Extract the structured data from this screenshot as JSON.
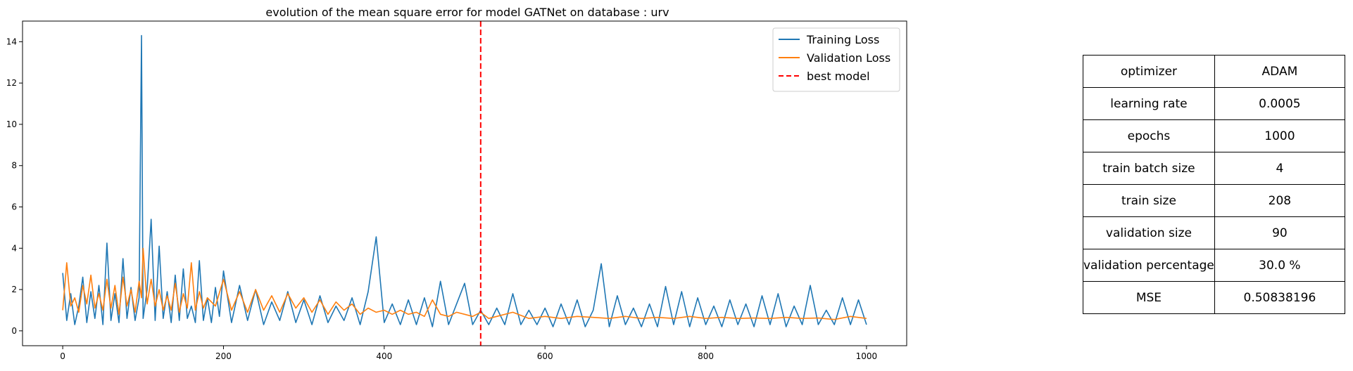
{
  "chart_data": {
    "type": "line",
    "title": "evolution of the mean square error for model GATNet on database : urv",
    "xlabel": "",
    "ylabel": "",
    "xlim": [
      -50,
      1050
    ],
    "ylim": [
      -0.72,
      15.0
    ],
    "xticks": [
      0,
      200,
      400,
      600,
      800,
      1000
    ],
    "yticks": [
      0,
      2,
      4,
      6,
      8,
      10,
      12,
      14
    ],
    "grid": false,
    "legend_position": "top-right",
    "best_model_epoch": 520,
    "series": [
      {
        "name": "Training Loss",
        "color": "#1f77b4",
        "x": [
          0,
          5,
          10,
          15,
          20,
          25,
          30,
          35,
          40,
          45,
          50,
          55,
          60,
          65,
          70,
          75,
          80,
          85,
          90,
          95,
          98,
          100,
          105,
          110,
          115,
          120,
          125,
          130,
          135,
          140,
          145,
          150,
          155,
          160,
          165,
          170,
          175,
          180,
          185,
          190,
          195,
          200,
          210,
          220,
          230,
          240,
          250,
          260,
          270,
          280,
          290,
          300,
          310,
          320,
          330,
          340,
          350,
          360,
          370,
          380,
          390,
          400,
          410,
          420,
          430,
          440,
          450,
          460,
          470,
          480,
          490,
          500,
          510,
          520,
          530,
          540,
          550,
          560,
          570,
          580,
          590,
          600,
          610,
          620,
          630,
          640,
          650,
          660,
          670,
          680,
          690,
          700,
          710,
          720,
          730,
          740,
          750,
          760,
          770,
          780,
          790,
          800,
          810,
          820,
          830,
          840,
          850,
          860,
          870,
          880,
          890,
          900,
          910,
          920,
          930,
          940,
          950,
          960,
          970,
          980,
          990,
          1000
        ],
        "y": [
          2.8,
          0.5,
          1.8,
          0.3,
          1.2,
          2.6,
          0.4,
          1.9,
          0.6,
          2.2,
          0.3,
          4.25,
          0.5,
          1.8,
          0.4,
          3.5,
          0.6,
          2.1,
          0.5,
          1.6,
          14.3,
          0.6,
          2.0,
          5.4,
          0.5,
          4.1,
          0.6,
          1.9,
          0.4,
          2.7,
          0.5,
          3.0,
          0.6,
          1.2,
          0.4,
          3.4,
          0.5,
          1.6,
          0.4,
          2.1,
          0.7,
          2.9,
          0.4,
          2.2,
          0.5,
          2.0,
          0.3,
          1.4,
          0.5,
          1.9,
          0.4,
          1.5,
          0.3,
          1.7,
          0.4,
          1.2,
          0.5,
          1.6,
          0.3,
          1.9,
          4.55,
          0.4,
          1.3,
          0.3,
          1.5,
          0.3,
          1.6,
          0.2,
          2.4,
          0.3,
          1.3,
          2.3,
          0.3,
          1.0,
          0.3,
          1.1,
          0.3,
          1.8,
          0.3,
          1.0,
          0.3,
          1.1,
          0.2,
          1.3,
          0.3,
          1.5,
          0.2,
          1.0,
          3.25,
          0.2,
          1.7,
          0.3,
          1.1,
          0.2,
          1.3,
          0.2,
          2.15,
          0.3,
          1.9,
          0.2,
          1.6,
          0.3,
          1.2,
          0.2,
          1.5,
          0.3,
          1.3,
          0.2,
          1.7,
          0.3,
          1.8,
          0.2,
          1.2,
          0.3,
          2.2,
          0.3,
          1.0,
          0.3,
          1.6,
          0.3,
          1.5,
          0.3
        ]
      },
      {
        "name": "Validation Loss",
        "color": "#ff7f0e",
        "x": [
          0,
          5,
          10,
          15,
          20,
          25,
          30,
          35,
          40,
          45,
          50,
          55,
          60,
          65,
          70,
          75,
          80,
          85,
          90,
          95,
          98,
          100,
          105,
          110,
          115,
          120,
          125,
          130,
          135,
          140,
          145,
          150,
          155,
          160,
          165,
          170,
          175,
          180,
          190,
          200,
          210,
          220,
          230,
          240,
          250,
          260,
          270,
          280,
          290,
          300,
          310,
          320,
          330,
          340,
          350,
          360,
          370,
          380,
          390,
          400,
          410,
          420,
          430,
          440,
          450,
          460,
          470,
          480,
          490,
          500,
          510,
          520,
          530,
          540,
          560,
          580,
          600,
          620,
          640,
          660,
          680,
          700,
          720,
          740,
          760,
          780,
          800,
          820,
          840,
          860,
          880,
          900,
          920,
          940,
          960,
          980,
          1000
        ],
        "y": [
          1.0,
          3.3,
          1.2,
          1.6,
          0.9,
          2.2,
          1.3,
          2.7,
          1.1,
          1.8,
          1.0,
          2.5,
          1.1,
          2.2,
          0.8,
          2.6,
          1.2,
          2.0,
          0.9,
          2.4,
          1.6,
          4.0,
          1.3,
          2.5,
          1.2,
          2.0,
          1.0,
          1.7,
          1.0,
          2.3,
          0.9,
          1.8,
          1.1,
          3.3,
          1.0,
          1.9,
          1.1,
          1.6,
          1.2,
          2.5,
          1.0,
          1.9,
          0.9,
          2.0,
          1.0,
          1.7,
          0.9,
          1.8,
          1.1,
          1.6,
          0.9,
          1.5,
          0.8,
          1.4,
          1.0,
          1.3,
          0.8,
          1.1,
          0.9,
          1.0,
          0.8,
          1.0,
          0.8,
          0.9,
          0.7,
          1.5,
          0.8,
          0.7,
          0.9,
          0.8,
          0.7,
          0.9,
          0.6,
          0.7,
          0.9,
          0.6,
          0.7,
          0.6,
          0.7,
          0.65,
          0.6,
          0.7,
          0.6,
          0.65,
          0.6,
          0.7,
          0.6,
          0.65,
          0.6,
          0.62,
          0.6,
          0.65,
          0.6,
          0.62,
          0.55,
          0.7,
          0.6
        ]
      }
    ],
    "legend": [
      "Training Loss",
      "Validation Loss",
      "best model"
    ],
    "legend_colors": [
      "#1f77b4",
      "#ff7f0e",
      "#ff0000"
    ]
  },
  "params_table": {
    "rows": [
      [
        "optimizer",
        "ADAM"
      ],
      [
        "learning rate",
        "0.0005"
      ],
      [
        "epochs",
        "1000"
      ],
      [
        "train batch size",
        "4"
      ],
      [
        "train size",
        "208"
      ],
      [
        "validation size",
        "90"
      ],
      [
        "validation percentage",
        "30.0 %"
      ],
      [
        "MSE",
        "0.50838196"
      ]
    ]
  }
}
